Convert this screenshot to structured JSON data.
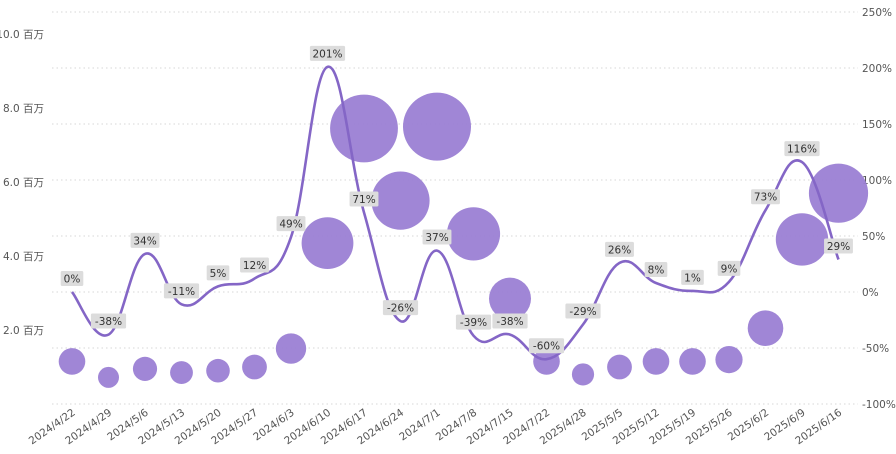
{
  "chart_data": {
    "type": "line",
    "categories": [
      "2024/4/22",
      "2024/4/29",
      "2024/5/6",
      "2024/5/13",
      "2024/5/20",
      "2024/5/27",
      "2024/6/3",
      "2024/6/10",
      "2024/6/17",
      "2024/6/24",
      "2024/7/1",
      "2024/7/8",
      "2024/7/15",
      "2024/7/22",
      "2025/4/28",
      "2025/5/5",
      "2025/5/12",
      "2025/5/19",
      "2025/5/26",
      "2025/6/2",
      "2025/6/9",
      "2025/6/16"
    ],
    "series": [
      {
        "kind": "bubble",
        "axis": "left",
        "values": [
          1.15,
          0.72,
          0.95,
          0.85,
          0.9,
          1.0,
          1.5,
          4.35,
          7.45,
          5.5,
          7.5,
          4.6,
          2.85,
          1.15,
          0.8,
          1.0,
          1.15,
          1.15,
          1.2,
          2.05,
          4.45,
          5.7
        ],
        "color": "#9b7fd4"
      },
      {
        "kind": "line",
        "axis": "right",
        "values": [
          0,
          -38,
          34,
          -11,
          5,
          12,
          49,
          201,
          71,
          -26,
          37,
          -39,
          -38,
          -60,
          -29,
          26,
          8,
          1,
          9,
          73,
          116,
          29
        ],
        "labels": [
          "0%",
          "-38%",
          "34%",
          "-11%",
          "5%",
          "12%",
          "49%",
          "201%",
          "71%",
          "-26%",
          "37%",
          "-39%",
          "-38%",
          "-60%",
          "-29%",
          "26%",
          "8%",
          "1%",
          "9%",
          "73%",
          "116%",
          "29%"
        ],
        "color": "#8466c6"
      }
    ],
    "y_left": {
      "ticks": [
        "2.0 百万",
        "4.0 百万",
        "6.0 百万",
        "8.0 百万",
        "10.0 百万"
      ],
      "values": [
        2,
        4,
        6,
        8,
        10
      ],
      "range": [
        0,
        10.6
      ]
    },
    "y_right": {
      "ticks": [
        "-100%",
        "-50%",
        "0%",
        "50%",
        "100%",
        "150%",
        "200%",
        "250%"
      ],
      "values": [
        -100,
        -50,
        0,
        50,
        100,
        150,
        200,
        250
      ],
      "range": [
        -100,
        250
      ]
    },
    "grid": true,
    "legend": "none"
  }
}
